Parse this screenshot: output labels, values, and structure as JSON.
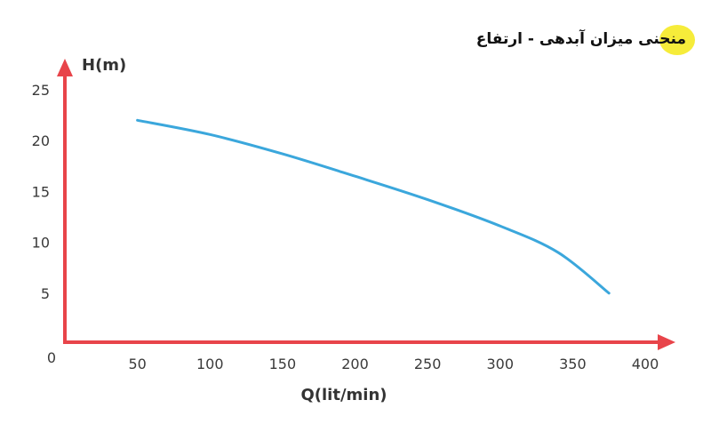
{
  "chart_data": {
    "type": "line",
    "title": "منحنی میزان آبدهی - ارتفاع",
    "xlabel": "Q(lit/min)",
    "ylabel": "H(m)",
    "origin_label": "0",
    "x_ticks": [
      50,
      100,
      150,
      200,
      250,
      300,
      350,
      400
    ],
    "y_ticks": [
      5,
      10,
      15,
      20,
      25
    ],
    "xlim": [
      0,
      400
    ],
    "ylim": [
      0,
      25
    ],
    "grid": false,
    "series": [
      {
        "x": [
          50,
          100,
          150,
          200,
          250,
          300,
          340,
          375
        ],
        "y": [
          22,
          20.6,
          18.7,
          16.5,
          14.2,
          11.6,
          9,
          5
        ]
      }
    ]
  },
  "colors": {
    "axis": "#e8444a",
    "line": "#3ba7dc",
    "highlight": "#f6ec3a"
  }
}
